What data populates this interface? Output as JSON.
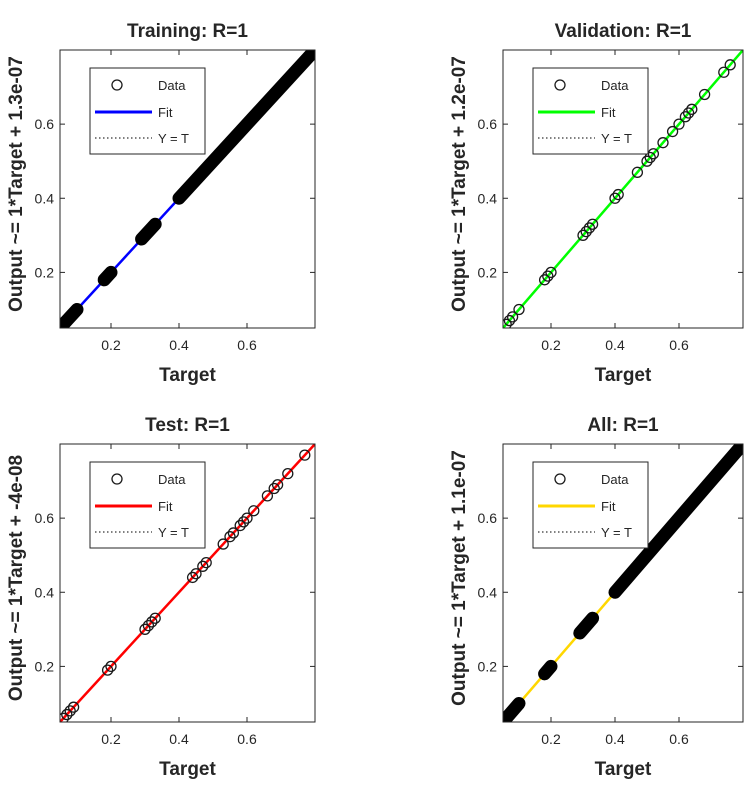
{
  "chart_data": [
    {
      "type": "scatter",
      "title": "Training: R=1",
      "xlabel": "Target",
      "ylabel": "Output ~= 1*Target + 1.3e-07",
      "xlim": [
        0.05,
        0.8
      ],
      "ylim": [
        0.05,
        0.8
      ],
      "xticks": [
        0.2,
        0.4,
        0.6
      ],
      "yticks": [
        0.2,
        0.4,
        0.6
      ],
      "fit_color": "#0000ff",
      "legend": {
        "placement": "top-left",
        "entries": [
          "Data",
          "Fit",
          "Y = T"
        ]
      },
      "data_segments": [
        [
          0.06,
          0.1
        ],
        [
          0.18,
          0.2
        ],
        [
          0.29,
          0.33
        ],
        [
          0.4,
          0.79
        ]
      ],
      "points": []
    },
    {
      "type": "scatter",
      "title": "Validation: R=1",
      "xlabel": "Target",
      "ylabel": "Output ~= 1*Target + 1.2e-07",
      "xlim": [
        0.05,
        0.8
      ],
      "ylim": [
        0.05,
        0.8
      ],
      "xticks": [
        0.2,
        0.4,
        0.6
      ],
      "yticks": [
        0.2,
        0.4,
        0.6
      ],
      "fit_color": "#00ff00",
      "legend": {
        "placement": "top-left",
        "entries": [
          "Data",
          "Fit",
          "Y = T"
        ]
      },
      "data_segments": [],
      "points": [
        0.06,
        0.07,
        0.08,
        0.1,
        0.18,
        0.19,
        0.2,
        0.3,
        0.31,
        0.32,
        0.33,
        0.4,
        0.41,
        0.47,
        0.5,
        0.51,
        0.52,
        0.55,
        0.58,
        0.6,
        0.62,
        0.63,
        0.64,
        0.68,
        0.74,
        0.76
      ]
    },
    {
      "type": "scatter",
      "title": "Test: R=1",
      "xlabel": "Target",
      "ylabel": "Output ~= 1*Target + -4e-08",
      "xlim": [
        0.05,
        0.8
      ],
      "ylim": [
        0.05,
        0.8
      ],
      "xticks": [
        0.2,
        0.4,
        0.6
      ],
      "yticks": [
        0.2,
        0.4,
        0.6
      ],
      "fit_color": "#ff0000",
      "legend": {
        "placement": "top-left",
        "entries": [
          "Data",
          "Fit",
          "Y = T"
        ]
      },
      "data_segments": [],
      "points": [
        0.06,
        0.07,
        0.08,
        0.09,
        0.19,
        0.2,
        0.3,
        0.31,
        0.32,
        0.33,
        0.44,
        0.45,
        0.47,
        0.48,
        0.53,
        0.55,
        0.56,
        0.58,
        0.59,
        0.6,
        0.62,
        0.66,
        0.68,
        0.69,
        0.72,
        0.77
      ]
    },
    {
      "type": "scatter",
      "title": "All: R=1",
      "xlabel": "Target",
      "ylabel": "Output ~= 1*Target + 1.1e-07",
      "xlim": [
        0.05,
        0.8
      ],
      "ylim": [
        0.05,
        0.8
      ],
      "xticks": [
        0.2,
        0.4,
        0.6
      ],
      "yticks": [
        0.2,
        0.4,
        0.6
      ],
      "fit_color": "#ffd700",
      "legend": {
        "placement": "top-left",
        "entries": [
          "Data",
          "Fit",
          "Y = T"
        ]
      },
      "data_segments": [
        [
          0.06,
          0.1
        ],
        [
          0.18,
          0.2
        ],
        [
          0.29,
          0.33
        ],
        [
          0.4,
          0.79
        ]
      ],
      "points": []
    }
  ]
}
